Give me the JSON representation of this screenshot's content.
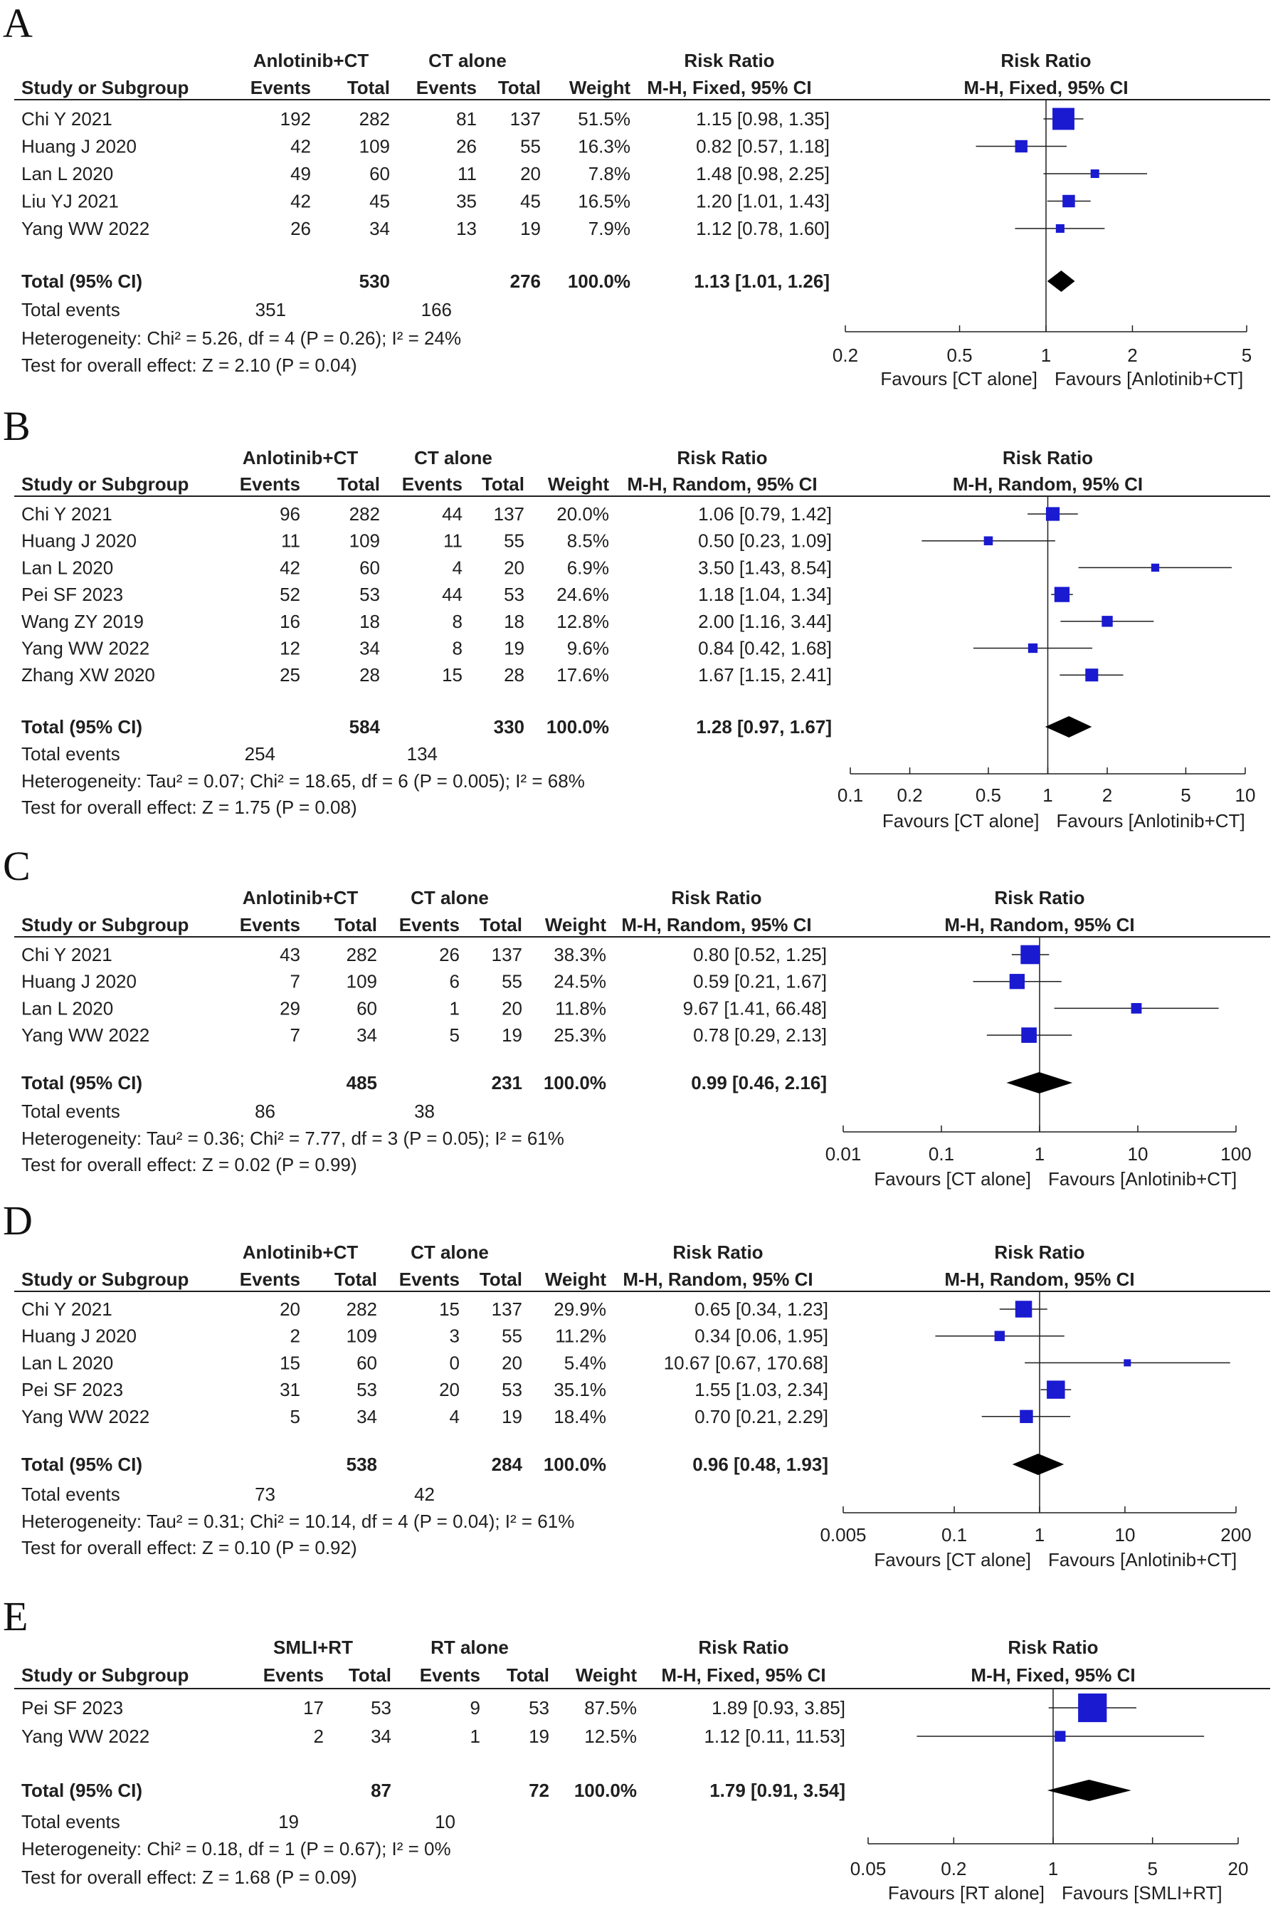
{
  "chart_data": [
    {
      "panel_label": "A",
      "type": "forest",
      "experimental_label": "Anlotinib+CT",
      "control_label": "CT alone",
      "col_study": "Study or Subgroup",
      "col_events": "Events",
      "col_total": "Total",
      "col_weight": "Weight",
      "col_rr_title": "Risk Ratio",
      "col_rr_method": "M-H, Fixed, 95% CI",
      "plot_title": "Risk Ratio",
      "plot_method": "M-H, Fixed, 95% CI",
      "studies": [
        {
          "name": "Chi Y 2021",
          "e_events": "192",
          "e_total": "282",
          "c_events": "81",
          "c_total": "137",
          "weight": "51.5%",
          "ci_text": "1.15 [0.98, 1.35]",
          "rr": 1.15,
          "lo": 0.98,
          "hi": 1.35,
          "w": 51.5
        },
        {
          "name": "Huang J 2020",
          "e_events": "42",
          "e_total": "109",
          "c_events": "26",
          "c_total": "55",
          "weight": "16.3%",
          "ci_text": "0.82 [0.57, 1.18]",
          "rr": 0.82,
          "lo": 0.57,
          "hi": 1.18,
          "w": 16.3
        },
        {
          "name": "Lan L 2020",
          "e_events": "49",
          "e_total": "60",
          "c_events": "11",
          "c_total": "20",
          "weight": "7.8%",
          "ci_text": "1.48 [0.98, 2.25]",
          "rr": 1.48,
          "lo": 0.98,
          "hi": 2.25,
          "w": 7.8
        },
        {
          "name": "Liu YJ 2021",
          "e_events": "42",
          "e_total": "45",
          "c_events": "35",
          "c_total": "45",
          "weight": "16.5%",
          "ci_text": "1.20 [1.01, 1.43]",
          "rr": 1.2,
          "lo": 1.01,
          "hi": 1.43,
          "w": 16.5
        },
        {
          "name": "Yang WW 2022",
          "e_events": "26",
          "e_total": "34",
          "c_events": "13",
          "c_total": "19",
          "weight": "7.9%",
          "ci_text": "1.12 [0.78, 1.60]",
          "rr": 1.12,
          "lo": 0.78,
          "hi": 1.6,
          "w": 7.9
        }
      ],
      "total": {
        "label": "Total (95% CI)",
        "e_total": "530",
        "c_total": "276",
        "weight": "100.0%",
        "ci_text": "1.13 [1.01, 1.26]",
        "rr": 1.13,
        "lo": 1.01,
        "hi": 1.26
      },
      "events": {
        "label": "Total events",
        "e": "351",
        "c": "166"
      },
      "heterogeneity": "Heterogeneity: Chi² = 5.26, df = 4 (P = 0.26); I² = 24%",
      "overall_effect": "Test for overall effect: Z = 2.10 (P = 0.04)",
      "axis": {
        "min": 0.2,
        "max": 5,
        "ticks": [
          0.2,
          0.5,
          1,
          2,
          5
        ],
        "tick_labels": [
          "0.2",
          "0.5",
          "1",
          "2",
          "5"
        ]
      },
      "favours_left": "Favours [CT alone]",
      "favours_right": "Favours [Anlotinib+CT]"
    },
    {
      "panel_label": "B",
      "type": "forest",
      "experimental_label": "Anlotinib+CT",
      "control_label": "CT alone",
      "col_study": "Study or Subgroup",
      "col_events": "Events",
      "col_total": "Total",
      "col_weight": "Weight",
      "col_rr_title": "Risk Ratio",
      "col_rr_method": "M-H, Random, 95% CI",
      "plot_title": "Risk Ratio",
      "plot_method": "M-H, Random, 95% CI",
      "studies": [
        {
          "name": "Chi Y 2021",
          "e_events": "96",
          "e_total": "282",
          "c_events": "44",
          "c_total": "137",
          "weight": "20.0%",
          "ci_text": "1.06 [0.79, 1.42]",
          "rr": 1.06,
          "lo": 0.79,
          "hi": 1.42,
          "w": 20.0
        },
        {
          "name": "Huang J 2020",
          "e_events": "11",
          "e_total": "109",
          "c_events": "11",
          "c_total": "55",
          "weight": "8.5%",
          "ci_text": "0.50 [0.23, 1.09]",
          "rr": 0.5,
          "lo": 0.23,
          "hi": 1.09,
          "w": 8.5
        },
        {
          "name": "Lan L 2020",
          "e_events": "42",
          "e_total": "60",
          "c_events": "4",
          "c_total": "20",
          "weight": "6.9%",
          "ci_text": "3.50 [1.43, 8.54]",
          "rr": 3.5,
          "lo": 1.43,
          "hi": 8.54,
          "w": 6.9
        },
        {
          "name": "Pei SF 2023",
          "e_events": "52",
          "e_total": "53",
          "c_events": "44",
          "c_total": "53",
          "weight": "24.6%",
          "ci_text": "1.18 [1.04, 1.34]",
          "rr": 1.18,
          "lo": 1.04,
          "hi": 1.34,
          "w": 24.6
        },
        {
          "name": "Wang ZY 2019",
          "e_events": "16",
          "e_total": "18",
          "c_events": "8",
          "c_total": "18",
          "weight": "12.8%",
          "ci_text": "2.00 [1.16, 3.44]",
          "rr": 2.0,
          "lo": 1.16,
          "hi": 3.44,
          "w": 12.8
        },
        {
          "name": "Yang WW 2022",
          "e_events": "12",
          "e_total": "34",
          "c_events": "8",
          "c_total": "19",
          "weight": "9.6%",
          "ci_text": "0.84 [0.42, 1.68]",
          "rr": 0.84,
          "lo": 0.42,
          "hi": 1.68,
          "w": 9.6
        },
        {
          "name": "Zhang XW 2020",
          "e_events": "25",
          "e_total": "28",
          "c_events": "15",
          "c_total": "28",
          "weight": "17.6%",
          "ci_text": "1.67 [1.15, 2.41]",
          "rr": 1.67,
          "lo": 1.15,
          "hi": 2.41,
          "w": 17.6
        }
      ],
      "total": {
        "label": "Total (95% CI)",
        "e_total": "584",
        "c_total": "330",
        "weight": "100.0%",
        "ci_text": "1.28 [0.97, 1.67]",
        "rr": 1.28,
        "lo": 0.97,
        "hi": 1.67
      },
      "events": {
        "label": "Total events",
        "e": "254",
        "c": "134"
      },
      "heterogeneity": "Heterogeneity: Tau² = 0.07; Chi² = 18.65, df = 6 (P = 0.005); I² = 68%",
      "overall_effect": "Test for overall effect: Z = 1.75 (P = 0.08)",
      "axis": {
        "min": 0.1,
        "max": 10,
        "ticks": [
          0.1,
          0.2,
          0.5,
          1,
          2,
          5,
          10
        ],
        "tick_labels": [
          "0.1",
          "0.2",
          "0.5",
          "1",
          "2",
          "5",
          "10"
        ]
      },
      "favours_left": "Favours [CT alone]",
      "favours_right": "Favours [Anlotinib+CT]"
    },
    {
      "panel_label": "C",
      "type": "forest",
      "experimental_label": "Anlotinib+CT",
      "control_label": "CT alone",
      "col_study": "Study or Subgroup",
      "col_events": "Events",
      "col_total": "Total",
      "col_weight": "Weight",
      "col_rr_title": "Risk Ratio",
      "col_rr_method": "M-H, Random, 95% CI",
      "plot_title": "Risk Ratio",
      "plot_method": "M-H, Random, 95% CI",
      "studies": [
        {
          "name": "Chi Y 2021",
          "e_events": "43",
          "e_total": "282",
          "c_events": "26",
          "c_total": "137",
          "weight": "38.3%",
          "ci_text": "0.80 [0.52, 1.25]",
          "rr": 0.8,
          "lo": 0.52,
          "hi": 1.25,
          "w": 38.3
        },
        {
          "name": "Huang J 2020",
          "e_events": "7",
          "e_total": "109",
          "c_events": "6",
          "c_total": "55",
          "weight": "24.5%",
          "ci_text": "0.59 [0.21, 1.67]",
          "rr": 0.59,
          "lo": 0.21,
          "hi": 1.67,
          "w": 24.5
        },
        {
          "name": "Lan L 2020",
          "e_events": "29",
          "e_total": "60",
          "c_events": "1",
          "c_total": "20",
          "weight": "11.8%",
          "ci_text": "9.67 [1.41, 66.48]",
          "rr": 9.67,
          "lo": 1.41,
          "hi": 66.48,
          "w": 11.8
        },
        {
          "name": "Yang WW 2022",
          "e_events": "7",
          "e_total": "34",
          "c_events": "5",
          "c_total": "19",
          "weight": "25.3%",
          "ci_text": "0.78 [0.29, 2.13]",
          "rr": 0.78,
          "lo": 0.29,
          "hi": 2.13,
          "w": 25.3
        }
      ],
      "total": {
        "label": "Total (95% CI)",
        "e_total": "485",
        "c_total": "231",
        "weight": "100.0%",
        "ci_text": "0.99 [0.46, 2.16]",
        "rr": 0.99,
        "lo": 0.46,
        "hi": 2.16
      },
      "events": {
        "label": "Total events",
        "e": "86",
        "c": "38"
      },
      "heterogeneity": "Heterogeneity: Tau² = 0.36; Chi² = 7.77, df = 3 (P = 0.05); I² = 61%",
      "overall_effect": "Test for overall effect: Z = 0.02 (P = 0.99)",
      "axis": {
        "min": 0.01,
        "max": 100,
        "ticks": [
          0.01,
          0.1,
          1,
          10,
          100
        ],
        "tick_labels": [
          "0.01",
          "0.1",
          "1",
          "10",
          "100"
        ]
      },
      "favours_left": "Favours [CT alone]",
      "favours_right": "Favours [Anlotinib+CT]"
    },
    {
      "panel_label": "D",
      "type": "forest",
      "experimental_label": "Anlotinib+CT",
      "control_label": "CT alone",
      "col_study": "Study or Subgroup",
      "col_events": "Events",
      "col_total": "Total",
      "col_weight": "Weight",
      "col_rr_title": "Risk Ratio",
      "col_rr_method": "M-H, Random, 95% CI",
      "plot_title": "Risk Ratio",
      "plot_method": "M-H, Random, 95% CI",
      "studies": [
        {
          "name": "Chi Y 2021",
          "e_events": "20",
          "e_total": "282",
          "c_events": "15",
          "c_total": "137",
          "weight": "29.9%",
          "ci_text": "0.65 [0.34, 1.23]",
          "rr": 0.65,
          "lo": 0.34,
          "hi": 1.23,
          "w": 29.9
        },
        {
          "name": "Huang J 2020",
          "e_events": "2",
          "e_total": "109",
          "c_events": "3",
          "c_total": "55",
          "weight": "11.2%",
          "ci_text": "0.34 [0.06, 1.95]",
          "rr": 0.34,
          "lo": 0.06,
          "hi": 1.95,
          "w": 11.2
        },
        {
          "name": "Lan L 2020",
          "e_events": "15",
          "e_total": "60",
          "c_events": "0",
          "c_total": "20",
          "weight": "5.4%",
          "ci_text": "10.67 [0.67, 170.68]",
          "rr": 10.67,
          "lo": 0.67,
          "hi": 170.68,
          "w": 5.4
        },
        {
          "name": "Pei SF 2023",
          "e_events": "31",
          "e_total": "53",
          "c_events": "20",
          "c_total": "53",
          "weight": "35.1%",
          "ci_text": "1.55 [1.03, 2.34]",
          "rr": 1.55,
          "lo": 1.03,
          "hi": 2.34,
          "w": 35.1
        },
        {
          "name": "Yang WW 2022",
          "e_events": "5",
          "e_total": "34",
          "c_events": "4",
          "c_total": "19",
          "weight": "18.4%",
          "ci_text": "0.70 [0.21, 2.29]",
          "rr": 0.7,
          "lo": 0.21,
          "hi": 2.29,
          "w": 18.4
        }
      ],
      "total": {
        "label": "Total (95% CI)",
        "e_total": "538",
        "c_total": "284",
        "weight": "100.0%",
        "ci_text": "0.96 [0.48, 1.93]",
        "rr": 0.96,
        "lo": 0.48,
        "hi": 1.93
      },
      "events": {
        "label": "Total events",
        "e": "73",
        "c": "42"
      },
      "heterogeneity": "Heterogeneity: Tau² = 0.31; Chi² = 10.14, df = 4 (P = 0.04); I² = 61%",
      "overall_effect": "Test for overall effect: Z = 0.10 (P = 0.92)",
      "axis": {
        "min": 0.005,
        "max": 200,
        "ticks": [
          0.005,
          0.1,
          1,
          10,
          200
        ],
        "tick_labels": [
          "0.005",
          "0.1",
          "1",
          "10",
          "200"
        ]
      },
      "favours_left": "Favours [CT alone]",
      "favours_right": "Favours [Anlotinib+CT]"
    },
    {
      "panel_label": "E",
      "type": "forest",
      "experimental_label": "SMLI+RT",
      "control_label": "RT alone",
      "col_study": "Study or Subgroup",
      "col_events": "Events",
      "col_total": "Total",
      "col_weight": "Weight",
      "col_rr_title": "Risk Ratio",
      "col_rr_method": "M-H, Fixed, 95% CI",
      "plot_title": "Risk Ratio",
      "plot_method": "M-H, Fixed, 95% CI",
      "studies": [
        {
          "name": "Pei SF 2023",
          "e_events": "17",
          "e_total": "53",
          "c_events": "9",
          "c_total": "53",
          "weight": "87.5%",
          "ci_text": "1.89 [0.93, 3.85]",
          "rr": 1.89,
          "lo": 0.93,
          "hi": 3.85,
          "w": 87.5
        },
        {
          "name": "Yang WW 2022",
          "e_events": "2",
          "e_total": "34",
          "c_events": "1",
          "c_total": "19",
          "weight": "12.5%",
          "ci_text": "1.12 [0.11, 11.53]",
          "rr": 1.12,
          "lo": 0.11,
          "hi": 11.53,
          "w": 12.5
        }
      ],
      "total": {
        "label": "Total (95% CI)",
        "e_total": "87",
        "c_total": "72",
        "weight": "100.0%",
        "ci_text": "1.79 [0.91, 3.54]",
        "rr": 1.79,
        "lo": 0.91,
        "hi": 3.54
      },
      "events": {
        "label": "Total events",
        "e": "19",
        "c": "10"
      },
      "heterogeneity": "Heterogeneity: Chi² = 0.18, df = 1 (P = 0.67); I² = 0%",
      "overall_effect": "Test for overall effect: Z = 1.68 (P = 0.09)",
      "axis": {
        "min": 0.05,
        "max": 20,
        "ticks": [
          0.05,
          0.2,
          1,
          5,
          20
        ],
        "tick_labels": [
          "0.05",
          "0.2",
          "1",
          "5",
          "20"
        ]
      },
      "favours_left": "Favours [RT alone]",
      "favours_right": "Favours [SMLI+RT]"
    }
  ],
  "colors": {
    "marker": "#1a1ad1",
    "diamond": "#000000",
    "line": "#1f1f1f",
    "text": "#1f1f1f"
  }
}
